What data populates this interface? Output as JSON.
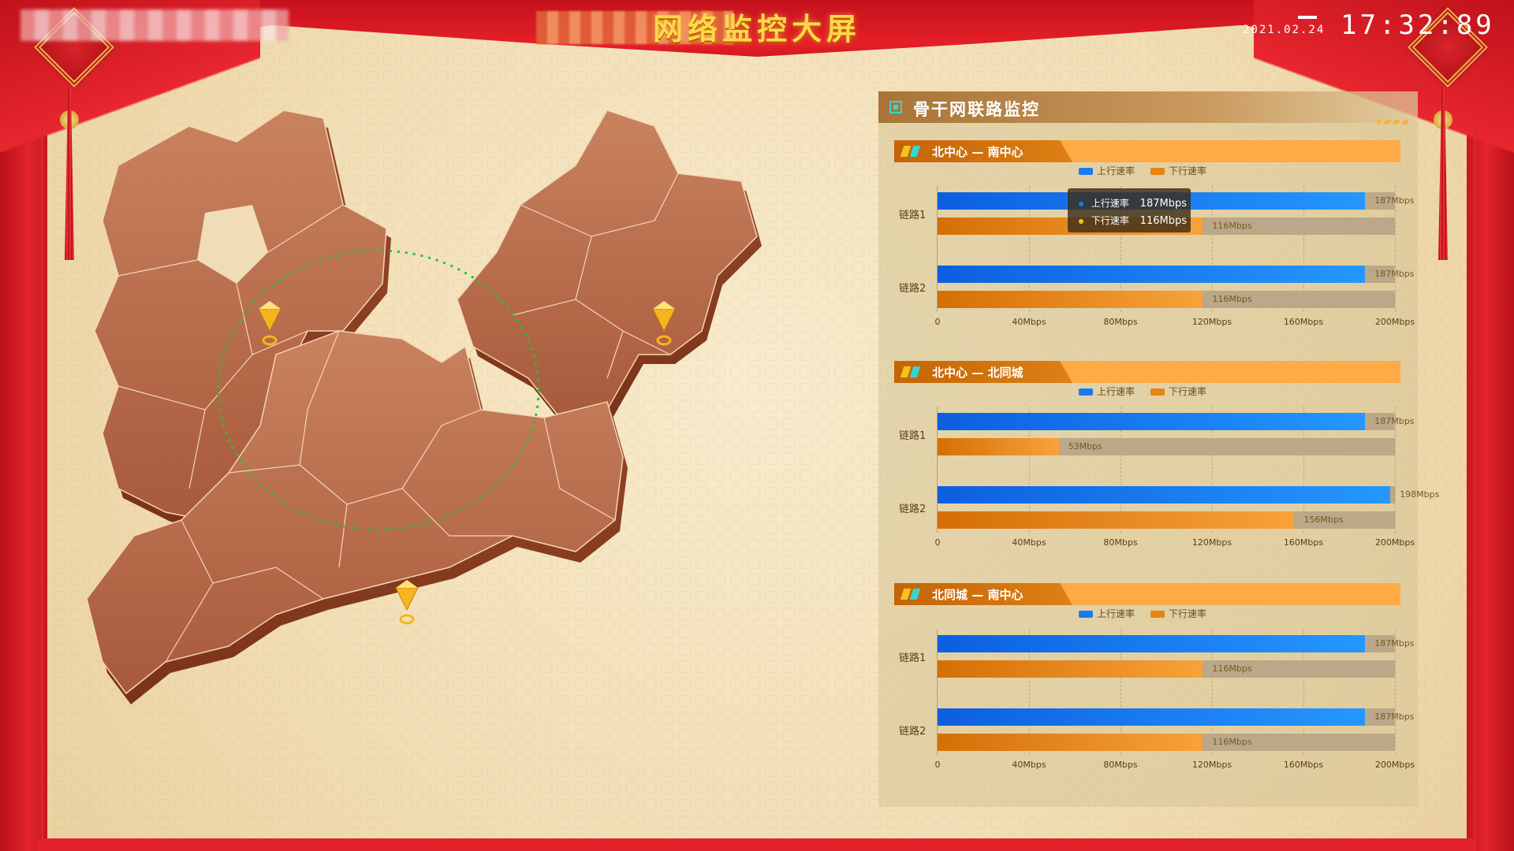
{
  "header": {
    "title": "网络监控大屏",
    "date": "2021.02.24",
    "time": "17:32:89"
  },
  "panel": {
    "title": "骨干网联路监控"
  },
  "legend": {
    "up": "上行速率",
    "down": "下行速率"
  },
  "colors": {
    "up": "#1a7af0",
    "down": "#e58512",
    "accent": "#ffaa44",
    "curtain": "#e3222b",
    "marker": "#f6b51e",
    "route": "#22c33a"
  },
  "tooltip": {
    "up_label": "上行速率",
    "up_value": "187Mbps",
    "down_label": "下行速率",
    "down_value": "116Mbps"
  },
  "chart_data": [
    {
      "type": "bar",
      "title": "北中心 — 南中心",
      "categories": [
        "链路1",
        "链路2"
      ],
      "series": [
        {
          "name": "上行速率",
          "values": [
            187,
            187
          ]
        },
        {
          "name": "下行速率",
          "values": [
            116,
            116
          ]
        }
      ],
      "xlim": [
        0,
        200
      ],
      "ticks": [
        "0",
        "40Mbps",
        "80Mbps",
        "120Mbps",
        "160Mbps",
        "200Mbps"
      ]
    },
    {
      "type": "bar",
      "title": "北中心 — 北同城",
      "categories": [
        "链路1",
        "链路2"
      ],
      "series": [
        {
          "name": "上行速率",
          "values": [
            187,
            198
          ]
        },
        {
          "name": "下行速率",
          "values": [
            53,
            156
          ]
        }
      ],
      "xlim": [
        0,
        200
      ],
      "ticks": [
        "0",
        "40Mbps",
        "80Mbps",
        "120Mbps",
        "160Mbps",
        "200Mbps"
      ]
    },
    {
      "type": "bar",
      "title": "北同城 — 南中心",
      "categories": [
        "链路1",
        "链路2"
      ],
      "series": [
        {
          "name": "上行速率",
          "values": [
            187,
            187
          ]
        },
        {
          "name": "下行速率",
          "values": [
            116,
            116
          ]
        }
      ],
      "xlim": [
        0,
        200
      ],
      "ticks": [
        "0",
        "40Mbps",
        "80Mbps",
        "120Mbps",
        "160Mbps",
        "200Mbps"
      ]
    }
  ]
}
